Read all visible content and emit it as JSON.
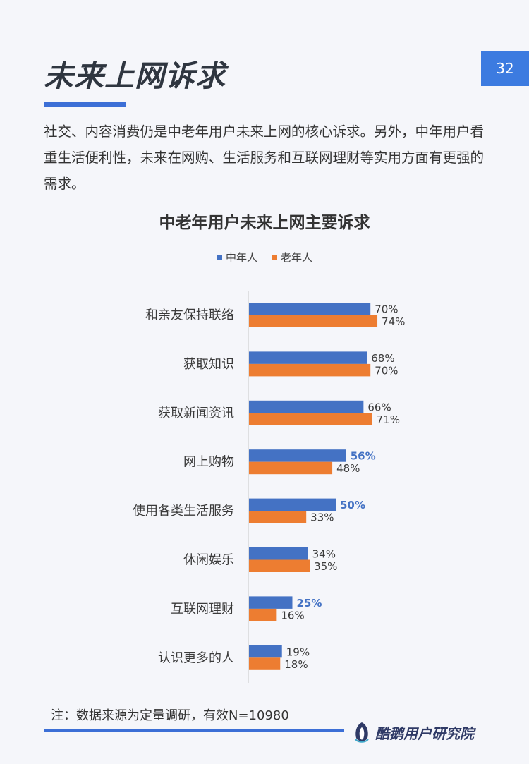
{
  "page": {
    "title": "未来上网诉求",
    "number": "32",
    "intro": "社交、内容消费仍是中老年用户未来上网的核心诉求。另外，中年用户看重生活便利性，未来在网购、生活服务和互联网理财等实用方面有更强的需求。",
    "footnote": "注：数据来源为定量调研，有效N=10980",
    "brand": "酷鹅用户研究院"
  },
  "colors": {
    "middle_aged": "#4472c4",
    "elderly": "#ed7d31",
    "highlight_label": "#4472c4",
    "accent": "#3c6fd6"
  },
  "chart_data": {
    "type": "bar",
    "orientation": "horizontal",
    "title": "中老年用户未来上网主要诉求",
    "legend_position": "top",
    "xlim": [
      0,
      100
    ],
    "grid": false,
    "categories": [
      "和亲友保持联络",
      "获取知识",
      "获取新闻资讯",
      "网上购物",
      "使用各类生活服务",
      "休闲娱乐",
      "互联网理财",
      "认识更多的人"
    ],
    "series": [
      {
        "name": "中年人",
        "values": [
          70,
          68,
          66,
          56,
          50,
          34,
          25,
          19
        ],
        "labels": [
          "70%",
          "68%",
          "66%",
          "56%",
          "50%",
          "34%",
          "25%",
          "19%"
        ],
        "highlighted": [
          false,
          false,
          false,
          true,
          true,
          false,
          true,
          false
        ]
      },
      {
        "name": "老年人",
        "values": [
          74,
          70,
          71,
          48,
          33,
          35,
          16,
          18
        ],
        "labels": [
          "74%",
          "70%",
          "71%",
          "48%",
          "33%",
          "35%",
          "16%",
          "18%"
        ],
        "highlighted": [
          false,
          false,
          false,
          false,
          false,
          false,
          false,
          false
        ]
      }
    ]
  }
}
